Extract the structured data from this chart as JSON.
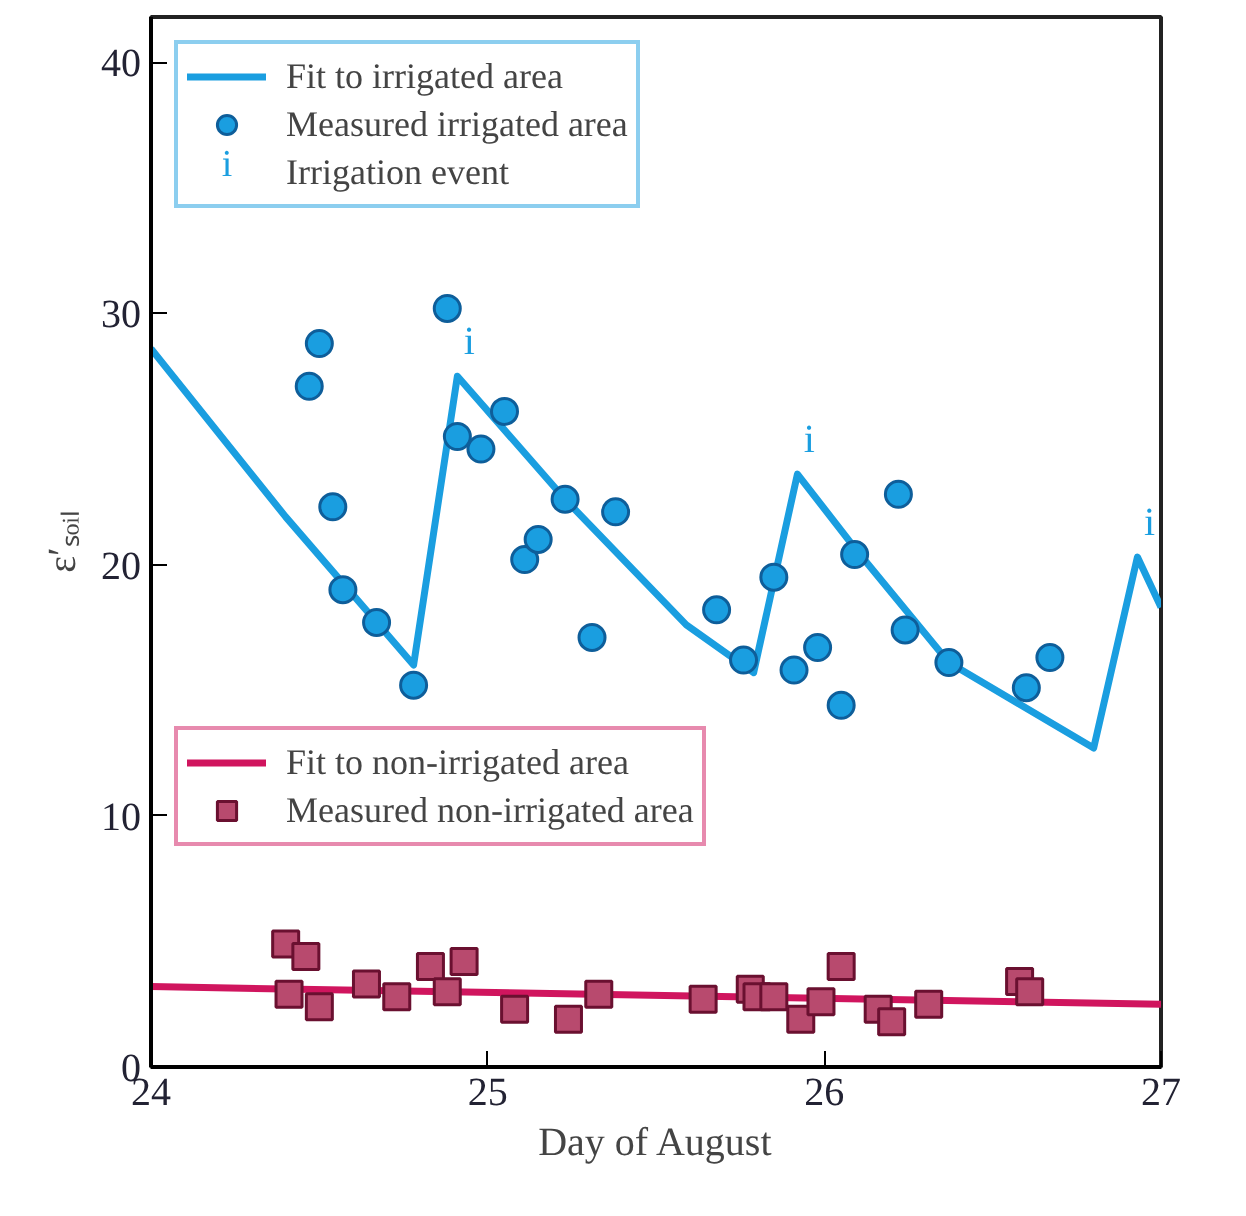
{
  "chart_data": {
    "type": "scatter",
    "xlabel": "Day of August",
    "ylabel": "ε′ₛₒᵢₗ",
    "xlim": [
      24,
      27
    ],
    "ylim": [
      0,
      41.8
    ],
    "xticks": [
      24,
      25,
      26,
      27
    ],
    "yticks": [
      0,
      10,
      20,
      30,
      40
    ],
    "grid": false,
    "legend": "top left",
    "series": [
      {
        "name": "Fit to irrigated area",
        "type": "line",
        "color": "#1a9ee0",
        "x": [
          24,
          24.4,
          24.78,
          24.91,
          25.23,
          25.59,
          25.79,
          25.92,
          26.1,
          26.37,
          26.8,
          26.93,
          27
        ],
        "values": [
          28.6,
          21.9,
          16.0,
          27.5,
          22.6,
          17.6,
          15.7,
          23.6,
          20.5,
          16.1,
          12.7,
          20.3,
          18.3
        ]
      },
      {
        "name": "Measured irrigated area",
        "marker": "circle",
        "color": "#1a9ee0",
        "x": [
          24.47,
          24.5,
          24.54,
          24.57,
          24.67,
          24.78,
          24.88,
          24.91,
          24.98,
          25.05,
          25.11,
          25.15,
          25.23,
          25.31,
          25.38,
          25.68,
          25.76,
          25.85,
          25.91,
          25.98,
          26.05,
          26.09,
          26.22,
          26.24,
          26.37,
          26.6,
          26.67
        ],
        "values": [
          27.1,
          28.8,
          22.3,
          19.0,
          17.7,
          15.2,
          30.2,
          25.1,
          24.6,
          26.1,
          20.2,
          21.0,
          22.6,
          17.1,
          22.1,
          18.2,
          16.2,
          19.5,
          15.8,
          16.7,
          14.4,
          20.4,
          22.8,
          17.4,
          16.1,
          15.1,
          16.3
        ]
      },
      {
        "name": "Fit to non-irrigated area",
        "type": "line",
        "color": "#d0155e",
        "x": [
          24,
          27
        ],
        "values": [
          3.2,
          2.5
        ]
      },
      {
        "name": "Measured non-irrigated area",
        "marker": "square",
        "color": "#b84a6e",
        "x": [
          24.4,
          24.46,
          24.41,
          24.5,
          24.64,
          24.73,
          24.83,
          24.88,
          24.93,
          25.08,
          25.24,
          25.33,
          25.64,
          25.78,
          25.8,
          25.85,
          25.93,
          25.99,
          26.05,
          26.16,
          26.2,
          26.31,
          26.58,
          26.61
        ],
        "values": [
          4.9,
          4.4,
          2.9,
          2.4,
          3.3,
          2.8,
          4.0,
          3.0,
          4.2,
          2.3,
          1.9,
          2.9,
          2.7,
          3.1,
          2.8,
          2.8,
          1.9,
          2.6,
          4.0,
          2.3,
          1.8,
          2.5,
          3.4,
          3.0
        ]
      }
    ],
    "annotations": [
      {
        "text": "i",
        "x": 24.91,
        "y": 27.5
      },
      {
        "text": "i",
        "x": 25.92,
        "y": 23.6
      },
      {
        "text": "i",
        "x": 26.93,
        "y": 20.3
      },
      "Irrigation event"
    ]
  }
}
